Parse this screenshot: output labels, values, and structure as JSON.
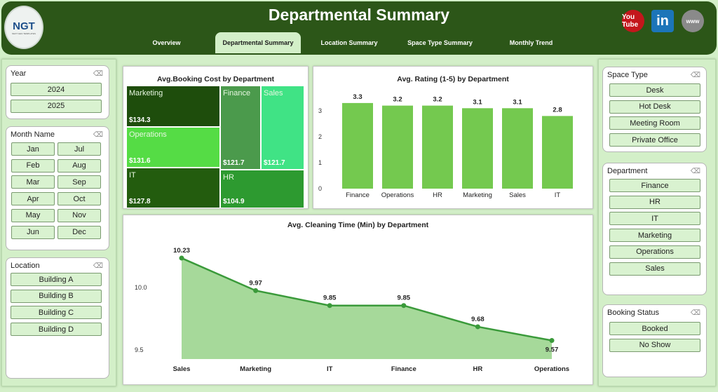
{
  "header": {
    "title": "Departmental Summary",
    "logo_text": "NGT",
    "logo_subtext": "NEXT GEN TEMPLATES",
    "tabs": [
      {
        "label": "Overview"
      },
      {
        "label": "Departmental Summary",
        "active": true
      },
      {
        "label": "Location Summary"
      },
      {
        "label": "Space Type Summary"
      },
      {
        "label": "Monthly Trend"
      }
    ],
    "social": [
      {
        "icon": "youtube-icon",
        "label": "You Tube",
        "color": "#c4161c"
      },
      {
        "icon": "linkedin-icon",
        "label": "in",
        "color": "#1c75b9"
      },
      {
        "icon": "globe-icon",
        "label": "www",
        "color": "#8a8a8a"
      }
    ]
  },
  "filters": {
    "year": {
      "title": "Year",
      "options": [
        "2024",
        "2025"
      ]
    },
    "month": {
      "title": "Month Name",
      "options": [
        "Jan",
        "Jul",
        "Feb",
        "Aug",
        "Mar",
        "Sep",
        "Apr",
        "Oct",
        "May",
        "Nov",
        "Jun",
        "Dec"
      ]
    },
    "location": {
      "title": "Location",
      "options": [
        "Building A",
        "Building B",
        "Building C",
        "Building D"
      ]
    },
    "space_type": {
      "title": "Space Type",
      "options": [
        "Desk",
        "Hot Desk",
        "Meeting Room",
        "Private Office"
      ]
    },
    "department": {
      "title": "Department",
      "options": [
        "Finance",
        "HR",
        "IT",
        "Marketing",
        "Operations",
        "Sales"
      ]
    },
    "booking_status": {
      "title": "Booking Status",
      "options": [
        "Booked",
        "No Show"
      ]
    }
  },
  "chart_data": [
    {
      "type": "treemap",
      "title": "Avg.Booking Cost by Department",
      "items": [
        {
          "name": "Marketing",
          "value": 134.3,
          "label": "$134.3",
          "color": "#1e4d0c"
        },
        {
          "name": "Operations",
          "value": 131.6,
          "label": "$131.6",
          "color": "#55dc45"
        },
        {
          "name": "IT",
          "value": 127.8,
          "label": "$127.8",
          "color": "#235c0e"
        },
        {
          "name": "Finance",
          "value": 121.7,
          "label": "$121.7",
          "color": "#4b9a4c"
        },
        {
          "name": "Sales",
          "value": 121.7,
          "label": "$121.7",
          "color": "#40e385"
        },
        {
          "name": "HR",
          "value": 104.9,
          "label": "$104.9",
          "color": "#2d9a30"
        }
      ]
    },
    {
      "type": "bar",
      "title": "Avg. Rating (1-5) by Department",
      "categories": [
        "Finance",
        "Operations",
        "HR",
        "Marketing",
        "Sales",
        "IT"
      ],
      "values": [
        3.3,
        3.2,
        3.2,
        3.1,
        3.1,
        2.8
      ],
      "labels": [
        "3.3",
        "3.2",
        "3.2",
        "3.1",
        "3.1",
        "2.8"
      ],
      "yticks": [
        "0",
        "1",
        "2",
        "3"
      ],
      "ylim": [
        0,
        3.5
      ],
      "color": "#74c94f"
    },
    {
      "type": "area",
      "title": "Avg. Cleaning Time (Min) by Department",
      "categories": [
        "Sales",
        "Marketing",
        "IT",
        "Finance",
        "HR",
        "Operations"
      ],
      "values": [
        10.23,
        9.97,
        9.85,
        9.85,
        9.68,
        9.57
      ],
      "labels": [
        "10.23",
        "9.97",
        "9.85",
        "9.85",
        "9.68",
        "9.57"
      ],
      "yticks": [
        "10.0",
        "9.5"
      ],
      "color": "#3a9a3a",
      "fill": "#a6d99a"
    }
  ]
}
